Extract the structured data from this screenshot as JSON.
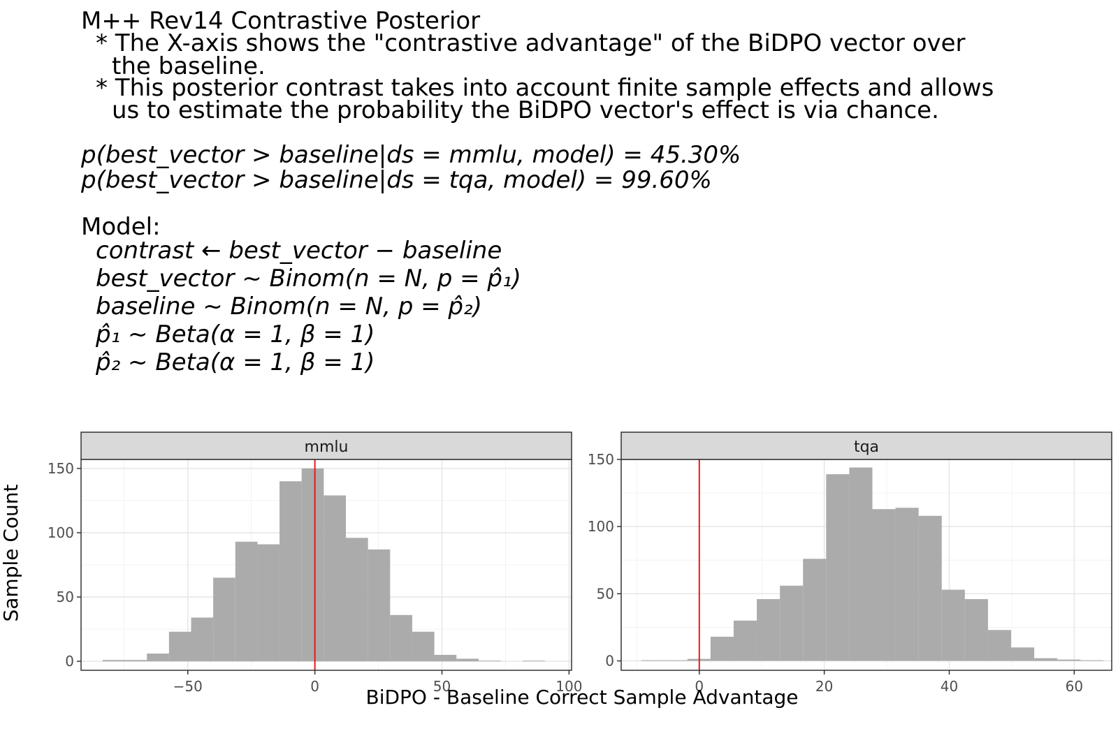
{
  "header": {
    "title": "M++ Rev14 Contrastive Posterior",
    "note1_line1": "* The X-axis shows the \"contrastive advantage\" of the BiDPO vector over",
    "note1_line2": "the baseline.",
    "note2_line1": "* This posterior contrast takes into account finite sample effects and allows",
    "note2_line2": "us to estimate the probability the BiDPO vector's effect is via chance.",
    "prob_mmlu": "p(best_vector > baseline|ds = mmlu, model) = 45.30%",
    "prob_tqa": "p(best_vector > baseline|ds = tqa, model) = 99.60%",
    "model_label": "Model:",
    "model_lines": [
      "contrast ← best_vector − baseline",
      "best_vector ~ Binom(n = N, p = p̂₁)",
      "baseline ~ Binom(n = N, p = p̂₂)",
      "p̂₁ ~ Beta(α = 1, β = 1)",
      "p̂₂ ~ Beta(α = 1, β = 1)"
    ]
  },
  "chart_data": {
    "type": "bar",
    "xlabel": "BiDPO - Baseline Correct Sample Advantage",
    "ylabel": "Sample Count",
    "bar_color": "#ababab",
    "reference_line": {
      "x": 0,
      "color": "#e8181a"
    },
    "grid": true,
    "panels": [
      {
        "strip_label": "mmlu",
        "xlim": [
          -92,
          101
        ],
        "ylim": [
          -7,
          157
        ],
        "xticks": [
          -50,
          0,
          50,
          100
        ],
        "xtick_labels": [
          "−50",
          "0",
          "50",
          "100"
        ],
        "yticks": [
          0,
          50,
          100,
          150
        ],
        "bin_width": 8.7,
        "bin_start": -83.5,
        "counts": [
          1,
          1,
          6,
          23,
          34,
          65,
          93,
          91,
          140,
          150,
          129,
          96,
          87,
          36,
          23,
          5,
          2,
          0.5,
          0,
          0.5
        ]
      },
      {
        "strip_label": "tqa",
        "xlim": [
          -12.5,
          66
        ],
        "ylim": [
          -7,
          150
        ],
        "xticks": [
          0,
          20,
          40,
          60
        ],
        "xtick_labels": [
          "0",
          "20",
          "40",
          "60"
        ],
        "yticks": [
          0,
          50,
          100,
          150
        ],
        "bin_width": 3.7,
        "bin_start": -9.3,
        "counts": [
          0.5,
          0.5,
          1.5,
          18,
          30,
          46,
          56,
          76,
          139,
          144,
          113,
          114,
          108,
          53,
          46,
          23,
          10,
          2,
          1,
          0.5
        ]
      }
    ]
  }
}
